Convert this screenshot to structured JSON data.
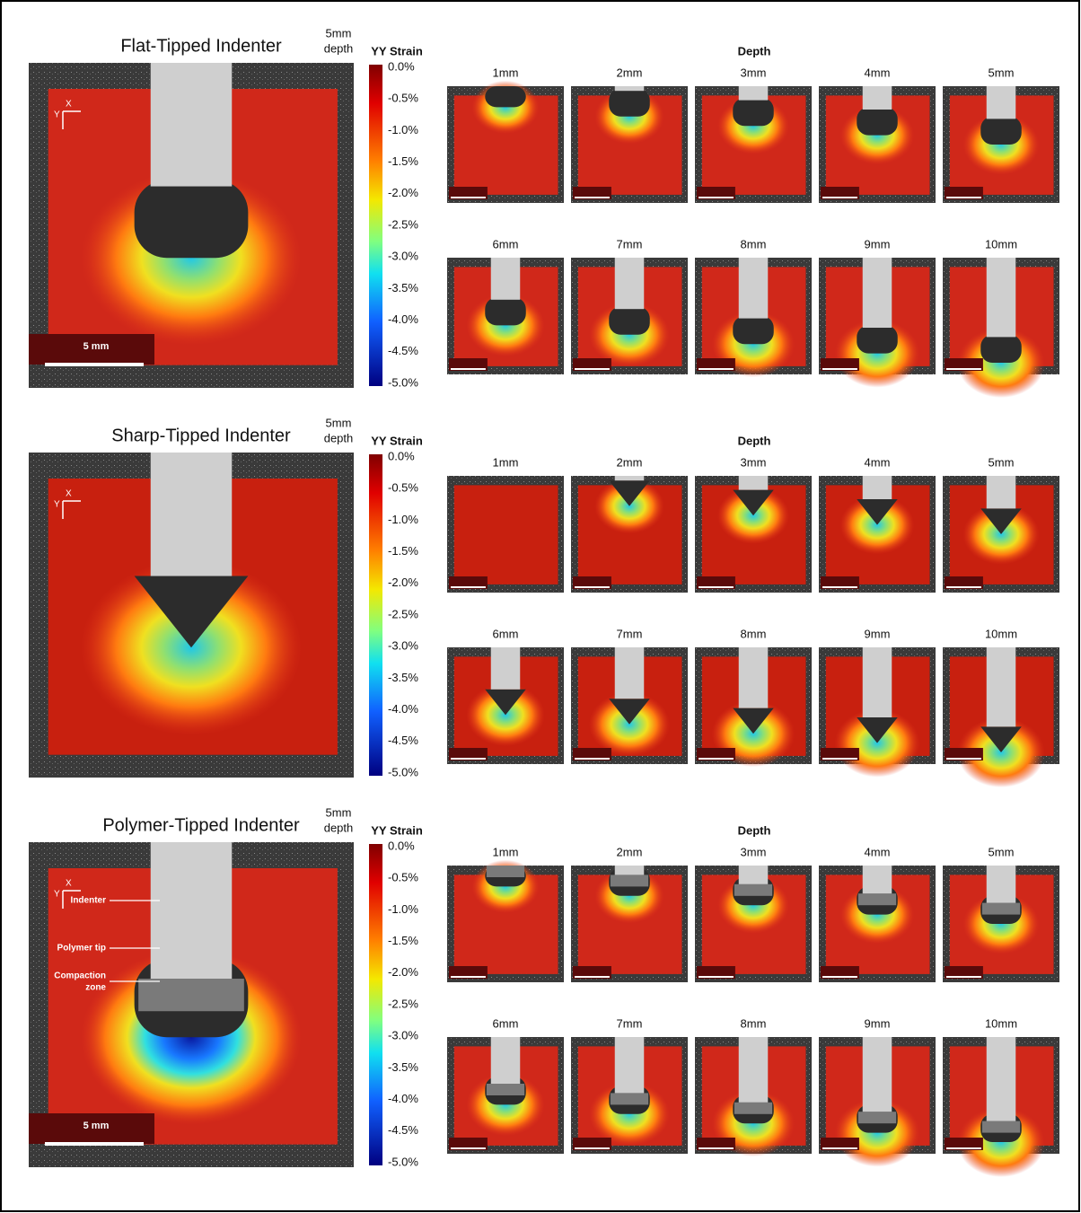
{
  "panels": [
    {
      "title": "Flat-Tipped Indenter",
      "depth_note": [
        "5mm",
        "depth"
      ],
      "axes": [
        "X",
        "Y"
      ],
      "scale_label": "5 mm",
      "colorbar": {
        "label": "YY Strain",
        "ticks": [
          "0.0%",
          "-0.5%",
          "-1.0%",
          "-1.5%",
          "-2.0%",
          "-2.5%",
          "-3.0%",
          "-3.5%",
          "-4.0%",
          "-4.5%",
          "-5.0%"
        ]
      },
      "depth_header": "Depth",
      "thumbnails": [
        "1mm",
        "2mm",
        "3mm",
        "4mm",
        "5mm",
        "6mm",
        "7mm",
        "8mm",
        "9mm",
        "10mm"
      ]
    },
    {
      "title": "Sharp-Tipped Indenter",
      "depth_note": [
        "5mm",
        "depth"
      ],
      "axes": [
        "X",
        "Y"
      ],
      "colorbar": {
        "label": "YY Strain",
        "ticks": [
          "0.0%",
          "-0.5%",
          "-1.0%",
          "-1.5%",
          "-2.0%",
          "-2.5%",
          "-3.0%",
          "-3.5%",
          "-4.0%",
          "-4.5%",
          "-5.0%"
        ]
      },
      "depth_header": "Depth",
      "thumbnails": [
        "1mm",
        "2mm",
        "3mm",
        "4mm",
        "5mm",
        "6mm",
        "7mm",
        "8mm",
        "9mm",
        "10mm"
      ]
    },
    {
      "title": "Polymer-Tipped Indenter",
      "depth_note": [
        "5mm",
        "depth"
      ],
      "axes": [
        "X",
        "Y"
      ],
      "scale_label": "5 mm",
      "annotations": [
        [
          "Indenter"
        ],
        [
          "Polymer tip"
        ],
        [
          "Compaction",
          "zone"
        ]
      ],
      "colorbar": {
        "label": "YY Strain",
        "ticks": [
          "0.0%",
          "-0.5%",
          "-1.0%",
          "-1.5%",
          "-2.0%",
          "-2.5%",
          "-3.0%",
          "-3.5%",
          "-4.0%",
          "-4.5%",
          "-5.0%"
        ]
      },
      "depth_header": "Depth",
      "thumbnails": [
        "1mm",
        "2mm",
        "3mm",
        "4mm",
        "5mm",
        "6mm",
        "7mm",
        "8mm",
        "9mm",
        "10mm"
      ]
    }
  ]
}
